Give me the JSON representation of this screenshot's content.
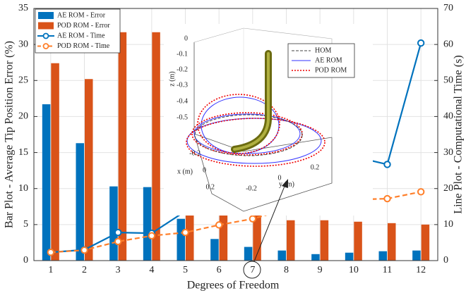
{
  "chart_data": {
    "type": "bar",
    "xlabel": "Degrees of Freedom",
    "ylabel": "Bar Plot - Average Tip Position Error (%)",
    "y2label": "Line Plot - Computational Time (s)",
    "categories": [
      1,
      2,
      3,
      4,
      5,
      6,
      7,
      8,
      9,
      10,
      11,
      12
    ],
    "series": [
      {
        "name": "AE ROM - Error",
        "type": "bar",
        "color": "#0072bd",
        "values": [
          21.7,
          16.3,
          10.3,
          10.2,
          5.8,
          3.0,
          1.9,
          1.4,
          0.9,
          1.1,
          1.3,
          1.4
        ]
      },
      {
        "name": "POD ROM - Error",
        "type": "bar",
        "color": "#d95319",
        "values": [
          27.4,
          25.2,
          31.7,
          31.7,
          9.8,
          7.9,
          7.0,
          5.6,
          5.6,
          5.4,
          5.2,
          5.0
        ]
      },
      {
        "name": "AE ROM - Time",
        "type": "line",
        "axis": "y2",
        "linestyle": "solid",
        "color": "#0072bd",
        "values": [
          2.3,
          3.0,
          7.8,
          7.6,
          13.7,
          15.6,
          17.3,
          19.0,
          19.3,
          28.9,
          26.7,
          60.4
        ]
      },
      {
        "name": "POD ROM - Time",
        "type": "line",
        "axis": "y2",
        "linestyle": "dashed",
        "color": "#ff7f2a",
        "values": [
          2.3,
          2.9,
          5.3,
          6.9,
          7.8,
          9.9,
          11.6,
          14.2,
          15.7,
          16.9,
          17.2,
          19.1
        ]
      }
    ],
    "ylim": [
      0,
      35
    ],
    "yticks": [
      0,
      5,
      10,
      15,
      20,
      25,
      30,
      35
    ],
    "y2lim": [
      0,
      70
    ],
    "y2ticks": [
      0,
      10,
      20,
      30,
      40,
      50,
      60,
      70
    ],
    "grid": true,
    "legend": "upper left"
  },
  "inset": {
    "zlabel": "z (m)",
    "zticks": [
      0,
      -0.1,
      -0.2,
      -0.3,
      -0.4,
      -0.5
    ],
    "xlabel": "x (m)",
    "xticks": [
      -0.2,
      0,
      0.2
    ],
    "ylabel": "y (m)",
    "yticks": [
      -0.2,
      0,
      0.2
    ],
    "legend": [
      "HOM",
      "AE ROM",
      "POD ROM"
    ]
  }
}
